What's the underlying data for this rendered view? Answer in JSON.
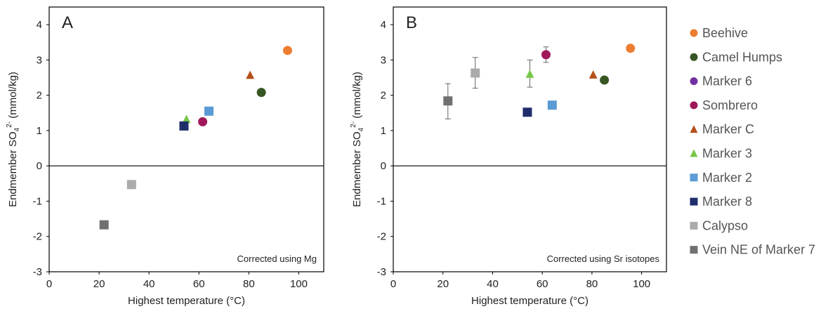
{
  "legend": [
    {
      "label": "Beehive",
      "shape": "circle",
      "color": "#ED7D31"
    },
    {
      "label": "Camel Humps",
      "shape": "circle",
      "color": "#375623"
    },
    {
      "label": "Marker 6",
      "shape": "circle",
      "color": "#7030A0"
    },
    {
      "label": "Sombrero",
      "shape": "circle",
      "color": "#A0185A"
    },
    {
      "label": "Marker C",
      "shape": "triangle",
      "color": "#B5501C"
    },
    {
      "label": "Marker 3",
      "shape": "triangle",
      "color": "#77C84A"
    },
    {
      "label": "Marker 2",
      "shape": "square",
      "color": "#5B9BD5"
    },
    {
      "label": "Marker 8",
      "shape": "square",
      "color": "#1F2D6B"
    },
    {
      "label": "Calypso",
      "shape": "square",
      "color": "#ABABAB"
    },
    {
      "label": "Vein NE of Marker 7",
      "shape": "square",
      "color": "#707070"
    }
  ],
  "chart_data": [
    {
      "type": "scatter",
      "panel_label": "A",
      "annotation": "Corrected using Mg",
      "xlabel": "Highest temperature (°C)",
      "ylabel_main": "Endmember SO",
      "ylabel_sub": "4",
      "ylabel_sup": "2-",
      "ylabel_unit": " (mmol/kg)",
      "xlim": [
        0,
        110
      ],
      "ylim": [
        -3,
        4.5
      ],
      "xticks": [
        0,
        20,
        40,
        60,
        80,
        100
      ],
      "yticks": [
        -3,
        -2,
        -1,
        0,
        1,
        2,
        3,
        4
      ],
      "grid": false,
      "points": [
        {
          "series": "Beehive",
          "x": 95.5,
          "y": 3.27
        },
        {
          "series": "Camel Humps",
          "x": 85,
          "y": 2.08
        },
        {
          "series": "Sombrero",
          "x": 61.5,
          "y": 1.25
        },
        {
          "series": "Marker C",
          "x": 80.5,
          "y": 2.57
        },
        {
          "series": "Marker 3",
          "x": 55,
          "y": 1.32
        },
        {
          "series": "Marker 2",
          "x": 64,
          "y": 1.55
        },
        {
          "series": "Marker 8",
          "x": 54,
          "y": 1.13
        },
        {
          "series": "Calypso",
          "x": 33,
          "y": -0.53
        },
        {
          "series": "Vein NE of Marker 7",
          "x": 22,
          "y": -1.67
        }
      ]
    },
    {
      "type": "scatter",
      "panel_label": "B",
      "annotation": "Corrected using Sr isotopes",
      "xlabel": "Highest temperature (°C)",
      "ylabel_main": "Endmember SO",
      "ylabel_sub": "4",
      "ylabel_sup": "2-",
      "ylabel_unit": " (mmol/kg)",
      "xlim": [
        0,
        110
      ],
      "ylim": [
        -3,
        4.5
      ],
      "xticks": [
        0,
        20,
        40,
        60,
        80,
        100
      ],
      "yticks": [
        -3,
        -2,
        -1,
        0,
        1,
        2,
        3,
        4
      ],
      "grid": false,
      "points": [
        {
          "series": "Beehive",
          "x": 95.5,
          "y": 3.33
        },
        {
          "series": "Camel Humps",
          "x": 85,
          "y": 2.43
        },
        {
          "series": "Sombrero",
          "x": 61.5,
          "y": 3.15,
          "err_low": 2.93,
          "err_high": 3.37
        },
        {
          "series": "Marker C",
          "x": 80.5,
          "y": 2.58
        },
        {
          "series": "Marker 3",
          "x": 55,
          "y": 2.6,
          "err_low": 2.23,
          "err_high": 3.0
        },
        {
          "series": "Marker 2",
          "x": 64,
          "y": 1.72
        },
        {
          "series": "Marker 8",
          "x": 54,
          "y": 1.52
        },
        {
          "series": "Calypso",
          "x": 33,
          "y": 2.63,
          "err_low": 2.2,
          "err_high": 3.07
        },
        {
          "series": "Vein NE of Marker 7",
          "x": 22,
          "y": 1.84,
          "err_low": 1.33,
          "err_high": 2.33
        }
      ]
    }
  ]
}
